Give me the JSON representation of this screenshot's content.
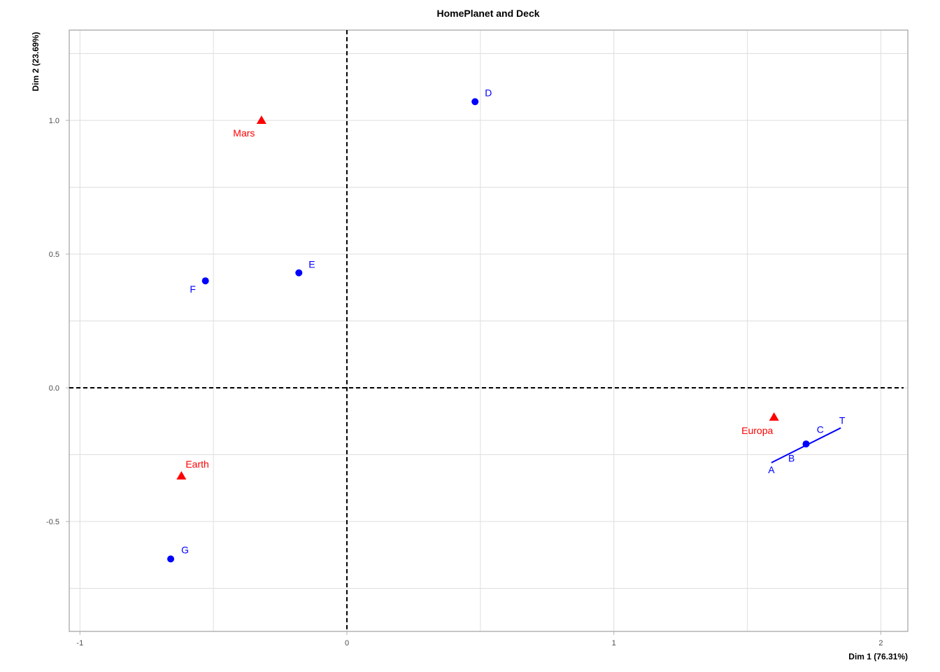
{
  "chart_data": {
    "type": "scatter",
    "title": "HomePlanet and Deck",
    "xlabel": "Dim 1 (76.31%)",
    "ylabel": "Dim 2 (23.69%)",
    "xlim": [
      -1.04,
      2.1
    ],
    "ylim": [
      -0.91,
      1.34
    ],
    "x_ticks": [
      -1,
      0,
      1,
      2
    ],
    "x_tick_labels": [
      "-1",
      "0",
      "1",
      "2"
    ],
    "y_ticks": [
      -0.5,
      0.0,
      0.5,
      1.0
    ],
    "y_tick_labels": [
      "-0.5",
      "0.0",
      "0.5",
      "1.0"
    ],
    "grid": true,
    "reference_lines": {
      "x": 0,
      "y": 0,
      "style": "dashed"
    },
    "series": [
      {
        "name": "HomePlanet",
        "color": "#ff0000",
        "marker": "triangle",
        "points": [
          {
            "label": "Mars",
            "x": -0.32,
            "y": 1.0
          },
          {
            "label": "Earth",
            "x": -0.62,
            "y": -0.33
          },
          {
            "label": "Europa",
            "x": 1.6,
            "y": -0.11
          }
        ]
      },
      {
        "name": "Deck",
        "color": "#0000ff",
        "marker": "circle",
        "points": [
          {
            "label": "D",
            "x": 0.48,
            "y": 1.07
          },
          {
            "label": "E",
            "x": -0.18,
            "y": 0.43
          },
          {
            "label": "F",
            "x": -0.53,
            "y": 0.4
          },
          {
            "label": "G",
            "x": -0.66,
            "y": -0.64
          },
          {
            "label": "A",
            "x": 1.59,
            "y": -0.28
          },
          {
            "label": "B",
            "x": 1.66,
            "y": -0.25
          },
          {
            "label": "C",
            "x": 1.76,
            "y": -0.19
          },
          {
            "label": "T",
            "x": 1.85,
            "y": -0.15
          },
          {
            "label": "",
            "x": 1.72,
            "y": -0.21
          }
        ]
      }
    ]
  }
}
